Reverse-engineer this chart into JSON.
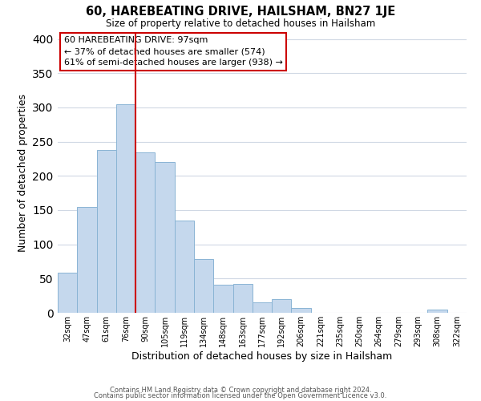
{
  "title": "60, HAREBEATING DRIVE, HAILSHAM, BN27 1JE",
  "subtitle": "Size of property relative to detached houses in Hailsham",
  "xlabel": "Distribution of detached houses by size in Hailsham",
  "ylabel": "Number of detached properties",
  "bar_color": "#c5d8ed",
  "bar_edge_color": "#8ab4d4",
  "vline_color": "#cc0000",
  "vline_x_index": 4,
  "categories": [
    "32sqm",
    "47sqm",
    "61sqm",
    "76sqm",
    "90sqm",
    "105sqm",
    "119sqm",
    "134sqm",
    "148sqm",
    "163sqm",
    "177sqm",
    "192sqm",
    "206sqm",
    "221sqm",
    "235sqm",
    "250sqm",
    "264sqm",
    "279sqm",
    "293sqm",
    "308sqm",
    "322sqm"
  ],
  "values": [
    58,
    155,
    238,
    305,
    234,
    220,
    135,
    79,
    41,
    42,
    15,
    20,
    7,
    0,
    0,
    0,
    0,
    0,
    0,
    5,
    0
  ],
  "ylim": [
    0,
    410
  ],
  "yticks": [
    0,
    50,
    100,
    150,
    200,
    250,
    300,
    350,
    400
  ],
  "annotation_title": "60 HAREBEATING DRIVE: 97sqm",
  "annotation_line1": "← 37% of detached houses are smaller (574)",
  "annotation_line2": "61% of semi-detached houses are larger (938) →",
  "box_edge_color": "#cc0000",
  "footer1": "Contains HM Land Registry data © Crown copyright and database right 2024.",
  "footer2": "Contains public sector information licensed under the Open Government Licence v3.0.",
  "background_color": "#ffffff",
  "grid_color": "#d0d8e4"
}
